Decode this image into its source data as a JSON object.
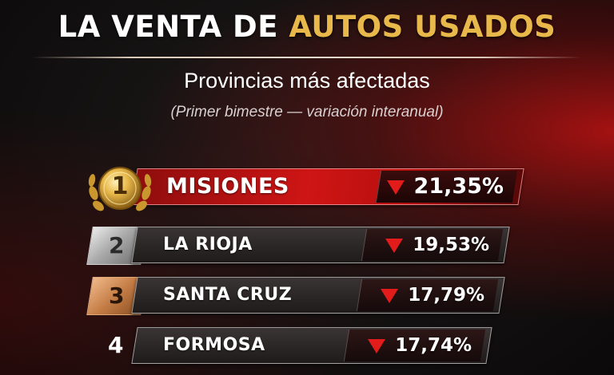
{
  "header": {
    "title_part1": "LA VENTA DE ",
    "title_part2": "AUTOS USADOS",
    "subtitle": "Provincias más afectadas",
    "note": "(Primer bimestre — variación interanual)"
  },
  "colors": {
    "accent_gold": "#e8b84a",
    "accent_red": "#cf1515",
    "down_arrow": "#e21b1b"
  },
  "chart_data": {
    "type": "bar",
    "title": "LA VENTA DE AUTOS USADOS",
    "subtitle": "Provincias más afectadas",
    "note": "(Primer bimestre — variación interanual)",
    "categories": [
      "MISIONES",
      "LA RIOJA",
      "SANTA CRUZ",
      "FORMOSA"
    ],
    "ranks": [
      "1",
      "2",
      "3",
      "4"
    ],
    "values": [
      -21.35,
      -19.53,
      -17.79,
      -17.74
    ],
    "value_labels": [
      "21,35%",
      "19,53%",
      "17,79%",
      "17,74%"
    ],
    "indicator_icon": "down-triangle-icon"
  }
}
